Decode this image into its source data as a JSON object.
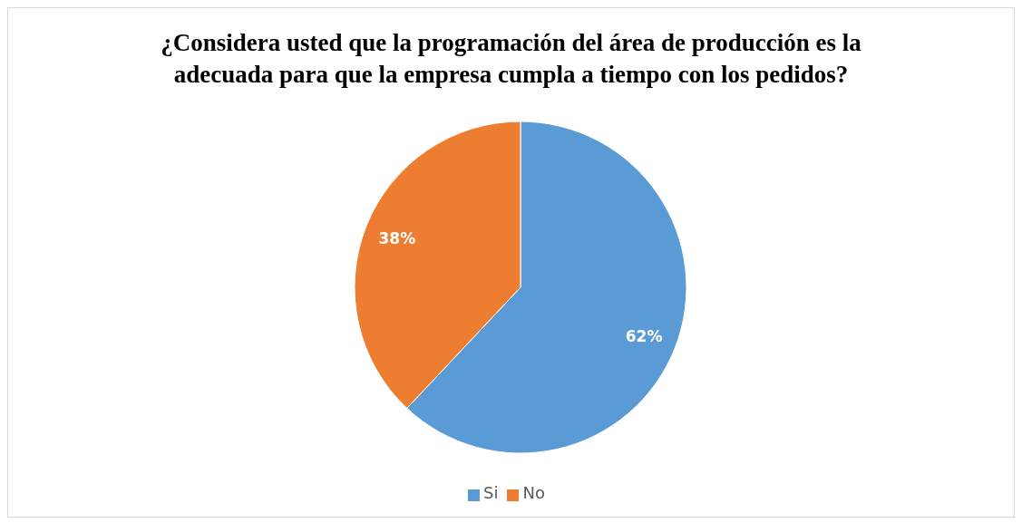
{
  "chart_data": {
    "type": "pie",
    "title": "¿Considera usted que la programación del área de producción es la adecuada para que la empresa cumpla a tiempo con los pedidos?",
    "categories": [
      "Si",
      "No"
    ],
    "values": [
      62,
      38
    ],
    "value_labels": [
      "62%",
      "38%"
    ],
    "colors": [
      "#5b9bd5",
      "#ed7d31"
    ],
    "legend": "bottom"
  }
}
